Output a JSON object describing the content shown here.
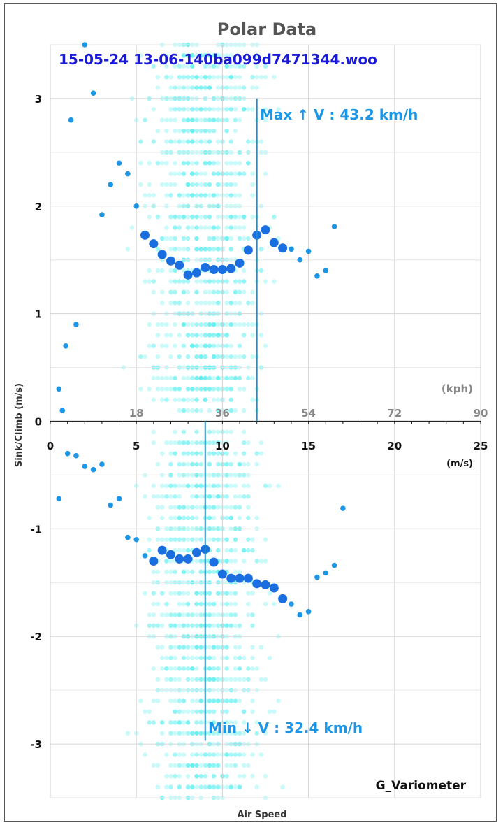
{
  "chart_data": {
    "type": "scatter",
    "title": "Polar Data",
    "subtitle": "15-05-24 13-06-140ba099d7471344.woo",
    "xlabel": "Air Speed",
    "ylabel": "Sink/Climb (m/s)",
    "x_unit": "(m/s)",
    "x2_unit": "(kph)",
    "xlim": [
      0,
      25
    ],
    "ylim": [
      -3.5,
      3.5
    ],
    "x_ticks": [
      "0",
      "5",
      "10",
      "15",
      "20",
      "25"
    ],
    "x2_ticks": [
      "18",
      "36",
      "54",
      "72",
      "90"
    ],
    "y_ticks": [
      "-3",
      "-2",
      "-1",
      "0",
      "1",
      "2",
      "3"
    ],
    "grid": true,
    "watermark": "G_Variometer",
    "colors": {
      "cloud": "#5cf0f0",
      "points": "#1e96e6",
      "means": "#1a6ee0",
      "lines": "#1e8fc8"
    },
    "max_climb_speed_line": {
      "x": 12,
      "label": "Max ↑ V : 43.2 km/h"
    },
    "min_sink_speed_line": {
      "x": 9,
      "label": "Min ↓ V : 32.4 km/h"
    },
    "series": [
      {
        "values": [
          [
            0.5,
            0.3
          ],
          [
            0.7,
            0.1
          ],
          [
            0.9,
            0.7
          ],
          [
            1.5,
            0.9
          ],
          [
            1.2,
            2.8
          ],
          [
            2.0,
            3.5
          ],
          [
            2.5,
            3.05
          ],
          [
            3.0,
            1.92
          ],
          [
            3.5,
            2.2
          ],
          [
            4.0,
            2.4
          ],
          [
            4.5,
            2.3
          ],
          [
            5.0,
            2.0
          ],
          [
            14.0,
            1.6
          ],
          [
            14.5,
            1.5
          ],
          [
            15.0,
            1.58
          ],
          [
            15.5,
            1.35
          ],
          [
            16.0,
            1.4
          ],
          [
            16.5,
            1.81
          ],
          [
            0.5,
            -0.72
          ],
          [
            1.0,
            -0.3
          ],
          [
            1.5,
            -0.32
          ],
          [
            2.0,
            -0.42
          ],
          [
            2.5,
            -0.45
          ],
          [
            3.0,
            -0.4
          ],
          [
            3.5,
            -0.78
          ],
          [
            4.0,
            -0.72
          ],
          [
            4.5,
            -1.08
          ],
          [
            5.0,
            -1.1
          ],
          [
            5.5,
            -1.25
          ],
          [
            14.0,
            -1.7
          ],
          [
            14.5,
            -1.8
          ],
          [
            15.0,
            -1.77
          ],
          [
            15.5,
            -1.45
          ],
          [
            16.0,
            -1.41
          ],
          [
            16.5,
            -1.34
          ],
          [
            17.0,
            -0.81
          ]
        ]
      },
      {
        "values": [
          [
            5.5,
            1.73
          ],
          [
            6.0,
            1.65
          ],
          [
            6.5,
            1.55
          ],
          [
            7.0,
            1.49
          ],
          [
            7.5,
            1.45
          ],
          [
            8.0,
            1.36
          ],
          [
            8.5,
            1.38
          ],
          [
            9.0,
            1.43
          ],
          [
            9.5,
            1.41
          ],
          [
            10.0,
            1.41
          ],
          [
            10.5,
            1.42
          ],
          [
            11.0,
            1.47
          ],
          [
            11.5,
            1.59
          ],
          [
            12.0,
            1.73
          ],
          [
            12.5,
            1.78
          ],
          [
            13.0,
            1.66
          ],
          [
            13.5,
            1.61
          ],
          [
            6.0,
            -1.3
          ],
          [
            6.5,
            -1.2
          ],
          [
            7.0,
            -1.24
          ],
          [
            7.5,
            -1.28
          ],
          [
            8.0,
            -1.28
          ],
          [
            8.5,
            -1.22
          ],
          [
            9.0,
            -1.19
          ],
          [
            9.5,
            -1.31
          ],
          [
            10.0,
            -1.42
          ],
          [
            10.5,
            -1.46
          ],
          [
            11.0,
            -1.46
          ],
          [
            11.5,
            -1.46
          ],
          [
            12.0,
            -1.51
          ],
          [
            12.5,
            -1.52
          ],
          [
            13.0,
            -1.55
          ],
          [
            13.5,
            -1.65
          ]
        ]
      }
    ]
  }
}
